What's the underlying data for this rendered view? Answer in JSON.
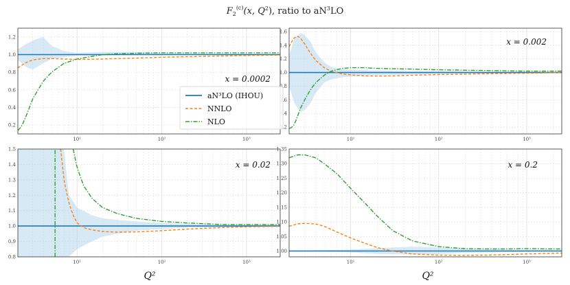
{
  "title": "F₂^(c)(x, Q²), ratio to aN³LO",
  "title_parts": {
    "main": "F",
    "sub": "2",
    "sup": "(c)",
    "args": "(x, Q",
    "args_sup": "2",
    "tail": "), ratio to aN",
    "tail_sup": "3",
    "tail_end": "LO"
  },
  "xlabel": "Q²",
  "legend": {
    "entries": [
      {
        "name": "aN³LO (IHOU)",
        "color": "#1f77b4",
        "style": "solid"
      },
      {
        "name": "NNLO",
        "color": "#ff7f0e",
        "style": "dashed"
      },
      {
        "name": "NLO",
        "color": "#2ca02c",
        "style": "dashdot"
      }
    ]
  },
  "colors": {
    "an3lo": "#1f77b4",
    "band": "#a6cfe8",
    "nnlo": "#ff7f0e",
    "nlo": "#2ca02c",
    "grid": "#dddddd"
  },
  "chart_data": [
    {
      "type": "line",
      "annotation": "x = 0.0002",
      "xscale": "log",
      "xlim": [
        2.0,
        2500
      ],
      "ylim": [
        0.1,
        1.3
      ],
      "yticks": [
        "0.2",
        "0.4",
        "0.6",
        "0.8",
        "1.0",
        "1.2"
      ],
      "xticks": [
        "10¹",
        "10²",
        "10³"
      ],
      "band": {
        "x": [
          2,
          2.5,
          3,
          4,
          5,
          7,
          10,
          20,
          50,
          100,
          500,
          2500
        ],
        "lower": [
          0.94,
          0.86,
          0.83,
          0.9,
          0.95,
          0.97,
          0.99,
          0.99,
          1.0,
          1.0,
          1.0,
          1.0
        ],
        "upper": [
          1.06,
          1.12,
          1.16,
          1.2,
          1.1,
          1.04,
          1.02,
          1.03,
          1.03,
          1.02,
          1.01,
          1.01
        ]
      },
      "series": [
        {
          "name": "aN³LO (IHOU)",
          "x": [
            2,
            2500
          ],
          "y": [
            1.0,
            1.0
          ]
        },
        {
          "name": "NNLO",
          "x": [
            2,
            2.5,
            3,
            4,
            5,
            7,
            10,
            20,
            50,
            100,
            300,
            1000,
            2500
          ],
          "y": [
            0.85,
            0.91,
            0.94,
            0.955,
            0.955,
            0.95,
            0.945,
            0.95,
            0.96,
            0.97,
            0.98,
            0.99,
            0.995
          ]
        },
        {
          "name": "NLO",
          "x": [
            2,
            2.2,
            2.5,
            3,
            4,
            5,
            7,
            10,
            15,
            20,
            30,
            50,
            100,
            300,
            1000,
            2500
          ],
          "y": [
            0.14,
            0.18,
            0.3,
            0.5,
            0.7,
            0.8,
            0.9,
            0.95,
            0.98,
            1.0,
            1.01,
            1.015,
            1.02,
            1.02,
            1.02,
            1.02
          ]
        }
      ]
    },
    {
      "type": "line",
      "annotation": "x = 0.002",
      "xscale": "log",
      "xlim": [
        2.0,
        2500
      ],
      "ylim": [
        0.1,
        1.65
      ],
      "yticks": [
        "0.2",
        "0.4",
        "0.6",
        "0.8",
        "1.0",
        "1.2",
        "1.4",
        "1.6"
      ],
      "xticks": [
        "10¹",
        "10²",
        "10³"
      ],
      "band": {
        "x": [
          2,
          2.3,
          2.7,
          3,
          3.5,
          4,
          5,
          6,
          8,
          10,
          20,
          50,
          100,
          500,
          2500
        ],
        "lower": [
          0.8,
          0.55,
          0.42,
          0.45,
          0.55,
          0.7,
          0.85,
          0.9,
          0.93,
          0.94,
          0.96,
          0.97,
          0.98,
          0.99,
          0.99
        ],
        "upper": [
          1.25,
          1.5,
          1.58,
          1.55,
          1.45,
          1.3,
          1.15,
          1.08,
          1.05,
          1.04,
          1.03,
          1.02,
          1.02,
          1.01,
          1.01
        ]
      },
      "series": [
        {
          "name": "aN³LO (IHOU)",
          "x": [
            2,
            2500
          ],
          "y": [
            1.0,
            1.0
          ]
        },
        {
          "name": "NNLO",
          "x": [
            2,
            2.3,
            2.6,
            3,
            3.5,
            4,
            5,
            6,
            8,
            10,
            15,
            20,
            30,
            50,
            100,
            300,
            1000,
            2500
          ],
          "y": [
            1.38,
            1.52,
            1.53,
            1.42,
            1.28,
            1.18,
            1.07,
            1.02,
            0.98,
            0.965,
            0.95,
            0.948,
            0.95,
            0.96,
            0.97,
            0.98,
            0.99,
            1.0
          ]
        },
        {
          "name": "NLO",
          "x": [
            2,
            2.2,
            2.4,
            2.7,
            3,
            3.5,
            4,
            5,
            6,
            8,
            10,
            15,
            20,
            50,
            100,
            300,
            1000,
            2500
          ],
          "y": [
            0.18,
            0.2,
            0.3,
            0.48,
            0.6,
            0.75,
            0.85,
            0.96,
            1.02,
            1.06,
            1.07,
            1.07,
            1.06,
            1.05,
            1.04,
            1.03,
            1.02,
            1.02
          ]
        }
      ]
    },
    {
      "type": "line",
      "annotation": "x = 0.02",
      "xscale": "log",
      "xlim": [
        2.0,
        2500
      ],
      "ylim": [
        0.8,
        1.5
      ],
      "yticks": [
        "0.8",
        "0.9",
        "1.0",
        "1.1",
        "1.2",
        "1.3",
        "1.4",
        "1.5"
      ],
      "xticks": [
        "10¹",
        "10²",
        "10³"
      ],
      "band": {
        "x": [
          2,
          2.5,
          3,
          3.5,
          4,
          5,
          6,
          7,
          8,
          10,
          15,
          20,
          30,
          50,
          100,
          200,
          500,
          1000,
          2500
        ],
        "lower": [
          0.8,
          0.8,
          0.8,
          0.8,
          0.8,
          0.8,
          0.8,
          0.8,
          0.8,
          0.85,
          0.9,
          0.93,
          0.95,
          0.97,
          0.98,
          0.99,
          0.99,
          0.995,
          0.995
        ],
        "upper": [
          1.5,
          1.5,
          1.5,
          1.5,
          1.5,
          1.5,
          1.5,
          1.5,
          1.2,
          1.12,
          1.07,
          1.05,
          1.04,
          1.03,
          1.02,
          1.015,
          1.01,
          1.01,
          1.01
        ]
      },
      "series": [
        {
          "name": "aN³LO (IHOU)",
          "x": [
            2,
            2500
          ],
          "y": [
            1.0,
            1.0
          ]
        },
        {
          "name": "NNLO",
          "x": [
            6.4,
            7,
            8,
            9,
            10,
            12,
            15,
            20,
            30,
            50,
            100,
            200,
            500,
            1000,
            2500
          ],
          "y": [
            1.5,
            1.3,
            1.15,
            1.07,
            1.02,
            0.99,
            0.975,
            0.965,
            0.96,
            0.962,
            0.97,
            0.98,
            0.99,
            0.995,
            0.998
          ]
        },
        {
          "name": "NLO",
          "x": [
            9,
            10,
            12,
            15,
            20,
            30,
            50,
            100,
            200,
            500,
            1000,
            2500
          ],
          "y": [
            1.5,
            1.38,
            1.26,
            1.18,
            1.12,
            1.08,
            1.05,
            1.03,
            1.02,
            1.01,
            1.01,
            1.01
          ]
        },
        {
          "name": "NLO-pole",
          "x": [
            5.5,
            5.5
          ],
          "y": [
            0.8,
            1.5
          ]
        }
      ]
    },
    {
      "type": "line",
      "annotation": "x = 0.2",
      "xscale": "log",
      "xlim": [
        2.0,
        2500
      ],
      "ylim": [
        0.98,
        1.35
      ],
      "yticks": [
        "1.00",
        "1.05",
        "1.10",
        "1.15",
        "1.20",
        "1.25",
        "1.30",
        "1.35"
      ],
      "xticks": [
        "10¹",
        "10²",
        "10³"
      ],
      "band": {
        "x": [
          2,
          5,
          10,
          20,
          50,
          100,
          200,
          500,
          1000,
          2500
        ],
        "lower": [
          0.998,
          0.998,
          0.995,
          0.99,
          0.988,
          0.99,
          0.994,
          0.996,
          0.997,
          0.998
        ],
        "upper": [
          1.002,
          1.003,
          1.005,
          1.01,
          1.015,
          1.012,
          1.008,
          1.005,
          1.004,
          1.003
        ]
      },
      "series": [
        {
          "name": "aN³LO (IHOU)",
          "x": [
            2,
            2500
          ],
          "y": [
            1.0,
            1.0
          ]
        },
        {
          "name": "NNLO",
          "x": [
            2,
            2.5,
            3,
            4,
            5,
            7,
            10,
            15,
            20,
            30,
            50,
            100,
            200,
            500,
            1000,
            2500
          ],
          "y": [
            1.085,
            1.093,
            1.095,
            1.093,
            1.085,
            1.065,
            1.045,
            1.025,
            1.012,
            1.0,
            0.99,
            0.986,
            0.985,
            0.987,
            0.99,
            0.993
          ]
        },
        {
          "name": "NLO",
          "x": [
            2,
            2.5,
            3,
            4,
            5,
            7,
            10,
            15,
            20,
            30,
            50,
            100,
            200,
            500,
            1000,
            2500
          ],
          "y": [
            1.32,
            1.33,
            1.33,
            1.32,
            1.3,
            1.265,
            1.215,
            1.16,
            1.12,
            1.07,
            1.035,
            1.015,
            1.008,
            1.007,
            1.008,
            1.007
          ]
        }
      ]
    }
  ]
}
